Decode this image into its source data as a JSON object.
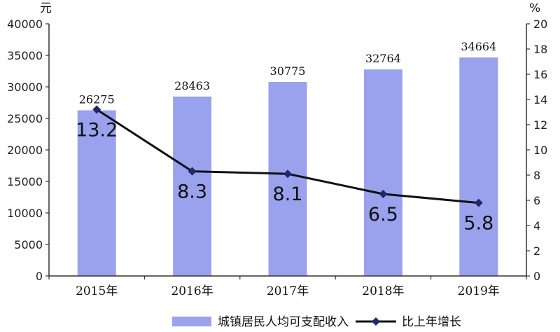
{
  "chart_data": {
    "type": "bar+line",
    "categories": [
      "2015年",
      "2016年",
      "2017年",
      "2018年",
      "2019年"
    ],
    "series": [
      {
        "name": "城镇居民人均可支配收入",
        "type": "bar",
        "axis": "left",
        "color": "#9aa2ee",
        "values": [
          26275,
          28463,
          30775,
          32764,
          34664
        ],
        "labels": [
          "26275",
          "28463",
          "30775",
          "32764",
          "34664"
        ]
      },
      {
        "name": "比上年增长",
        "type": "line",
        "axis": "right",
        "color": "#111111",
        "marker_color": "#1f2a6b",
        "values": [
          13.2,
          8.3,
          8.1,
          6.5,
          5.8
        ],
        "labels": [
          "13.2",
          "8.3",
          "8.1",
          "6.5",
          "5.8"
        ]
      }
    ],
    "left_axis": {
      "unit": "元",
      "ylim": [
        0,
        40000
      ],
      "ticks": [
        "0",
        "5000",
        "10000",
        "15000",
        "20000",
        "25000",
        "30000",
        "35000",
        "40000"
      ]
    },
    "right_axis": {
      "unit": "%",
      "ylim": [
        0,
        20
      ],
      "ticks": [
        "0",
        "2",
        "4",
        "6",
        "8",
        "10",
        "12",
        "14",
        "16",
        "18",
        "20"
      ]
    },
    "grid": false,
    "legend": "bottom"
  }
}
